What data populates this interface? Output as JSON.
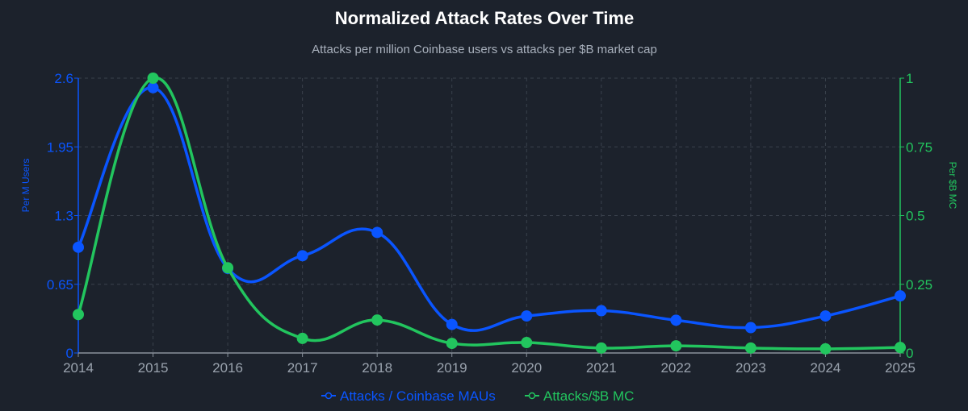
{
  "chart_data": {
    "type": "line",
    "title": "Normalized Attack Rates Over Time",
    "subtitle": "Attacks per million Coinbase users vs attacks per $B market cap",
    "categories": [
      "2014",
      "2015",
      "2016",
      "2017",
      "2018",
      "2019",
      "2020",
      "2021",
      "2022",
      "2023",
      "2024",
      "2025"
    ],
    "y_left": {
      "label": "Per M Users",
      "range": [
        0,
        2.6
      ],
      "ticks": [
        "0",
        "0.65",
        "1.3",
        "1.95",
        "2.6"
      ],
      "color": "#0a55ff"
    },
    "y_right": {
      "label": "Per $B MC",
      "range": [
        0,
        1
      ],
      "ticks": [
        "0",
        "0.25",
        "0.5",
        "0.75",
        "1"
      ],
      "color": "#22c55e"
    },
    "grid": true,
    "legend_position": "bottom",
    "series": [
      {
        "name": "Attacks / Coinbase MAUs",
        "axis": "left",
        "color": "#0a55ff",
        "values": [
          1.0,
          2.51,
          0.8,
          0.92,
          1.14,
          0.27,
          0.35,
          0.4,
          0.31,
          0.24,
          0.35,
          0.54
        ]
      },
      {
        "name": "Attacks/$B MC",
        "axis": "right",
        "color": "#22c55e",
        "values": [
          0.14,
          1.0,
          0.31,
          0.053,
          0.12,
          0.035,
          0.038,
          0.018,
          0.026,
          0.018,
          0.015,
          0.02
        ]
      }
    ]
  }
}
